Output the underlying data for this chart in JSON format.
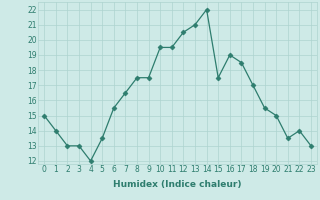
{
  "x": [
    0,
    1,
    2,
    3,
    4,
    5,
    6,
    7,
    8,
    9,
    10,
    11,
    12,
    13,
    14,
    15,
    16,
    17,
    18,
    19,
    20,
    21,
    22,
    23
  ],
  "y": [
    15,
    14,
    13,
    13,
    12,
    13.5,
    15.5,
    16.5,
    17.5,
    17.5,
    19.5,
    19.5,
    20.5,
    21,
    22,
    17.5,
    19,
    18.5,
    17,
    15.5,
    15,
    13.5,
    14,
    13
  ],
  "xlabel": "Humidex (Indice chaleur)",
  "line_color": "#2e7d6e",
  "marker": "D",
  "marker_size": 2.5,
  "bg_color": "#ceeae7",
  "grid_color": "#aed4d0",
  "ylim": [
    11.8,
    22.5
  ],
  "xlim": [
    -0.5,
    23.5
  ],
  "yticks": [
    12,
    13,
    14,
    15,
    16,
    17,
    18,
    19,
    20,
    21,
    22
  ],
  "xticks": [
    0,
    1,
    2,
    3,
    4,
    5,
    6,
    7,
    8,
    9,
    10,
    11,
    12,
    13,
    14,
    15,
    16,
    17,
    18,
    19,
    20,
    21,
    22,
    23
  ],
  "label_fontsize": 6.5,
  "tick_fontsize": 5.5
}
